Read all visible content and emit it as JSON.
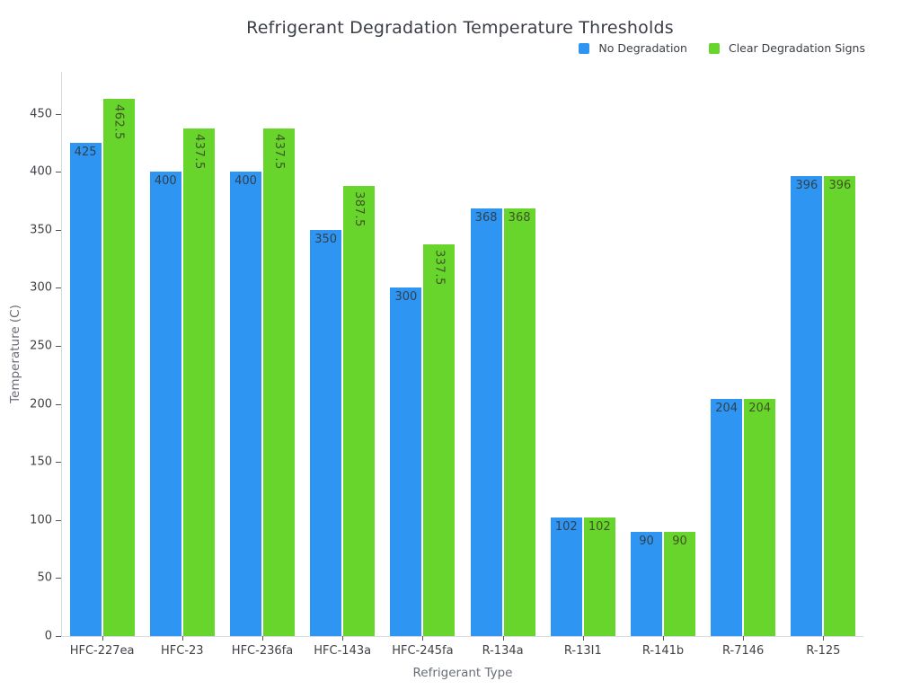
{
  "title": "Refrigerant Degradation Temperature Thresholds",
  "chart_data": {
    "type": "bar",
    "title": "Refrigerant Degradation Temperature Thresholds",
    "xlabel": "Refrigerant Type",
    "ylabel": "Temperature (C)",
    "categories": [
      "HFC-227ea",
      "HFC-23",
      "HFC-236fa",
      "HFC-143a",
      "HFC-245fa",
      "R-134a",
      "R-13I1",
      "R-141b",
      "R-7146",
      "R-125"
    ],
    "series": [
      {
        "name": "No Degradation",
        "color": "#2E96F2",
        "label_color": "#31404e",
        "values": [
          425,
          400,
          400,
          350,
          300,
          368,
          102,
          90,
          204,
          396
        ]
      },
      {
        "name": "Clear Degradation Signs",
        "color": "#68D52D",
        "label_color": "#3e5423",
        "values": [
          462.5,
          437.5,
          437.5,
          387.5,
          337.5,
          368,
          102,
          90,
          204,
          396
        ]
      }
    ],
    "ylim": [
      0,
      486
    ],
    "yticks": [
      0,
      50,
      100,
      150,
      200,
      250,
      300,
      350,
      400,
      450
    ],
    "grid": false,
    "legend_position": "top-right",
    "bar_value_labels": "inside-top",
    "background_color": "#ffffff",
    "axis_line_color": "#d9dae1"
  }
}
